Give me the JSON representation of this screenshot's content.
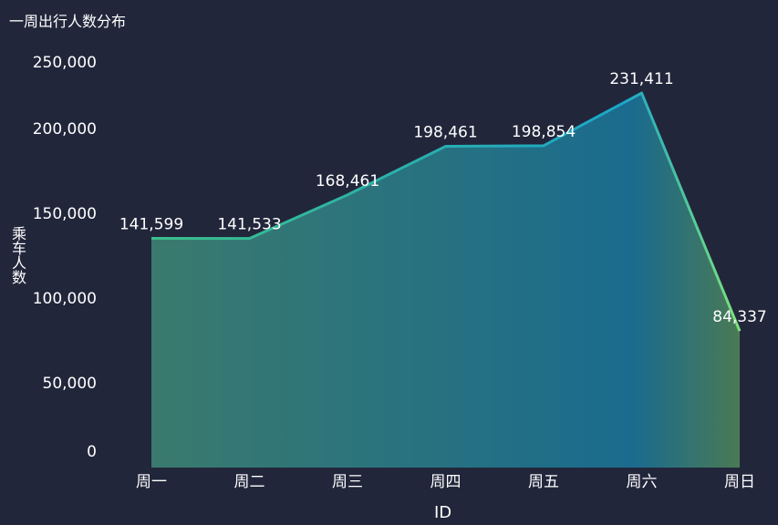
{
  "chart_data": {
    "type": "area",
    "title": "一周出行人数分布",
    "xlabel": "ID",
    "ylabel": "乘车人数",
    "categories": [
      "周一",
      "周二",
      "周三",
      "周四",
      "周五",
      "周六",
      "周日"
    ],
    "series": [
      {
        "values": [
          141599,
          141533,
          168461,
          198461,
          198854,
          231411,
          84337
        ]
      }
    ],
    "data_labels": [
      "141,599",
      "141,533",
      "168,461",
      "198,461",
      "198,854",
      "231,411",
      "84,337"
    ],
    "y_ticks": [
      "0",
      "50,000",
      "100,000",
      "150,000",
      "200,000",
      "250,000"
    ],
    "ylim": [
      0,
      250000
    ],
    "grid": false,
    "colors": {
      "background": "#22263b",
      "area_start": "#3a7a6e",
      "area_mid": "#1a6b8e",
      "area_end": "#4a7a55",
      "line_start": "#3dbf8a",
      "line_mid": "#1ba6c9",
      "line_end": "#7de37a"
    }
  }
}
